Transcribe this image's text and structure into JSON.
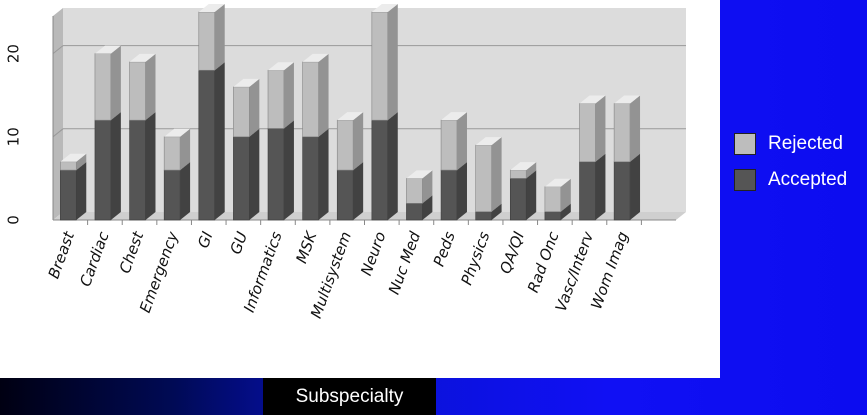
{
  "chart_data": {
    "type": "bar",
    "stacked": true,
    "style": "3d",
    "categories": [
      "Breast",
      "Cardiac",
      "Chest",
      "Emergency",
      "GI",
      "GU",
      "Informatics",
      "MSK",
      "Multisystem",
      "Neuro",
      "Nuc Med",
      "Peds",
      "Physics",
      "QA/QI",
      "Rad Onc",
      "Vasc/Interv",
      "Wom Imag"
    ],
    "series": [
      {
        "name": "Accepted",
        "color": "#555555",
        "values": [
          6,
          12,
          12,
          6,
          18,
          10,
          11,
          10,
          6,
          12,
          2,
          6,
          1,
          5,
          1,
          7,
          7
        ]
      },
      {
        "name": "Rejected",
        "color": "#bdbdbd",
        "values": [
          1,
          8,
          7,
          4,
          7,
          6,
          7,
          9,
          6,
          13,
          3,
          6,
          8,
          1,
          3,
          7,
          7
        ]
      }
    ],
    "xlabel": "Subspecialty",
    "ylabel": "",
    "yticks": [
      0,
      10,
      20
    ],
    "ylim": [
      0,
      25
    ],
    "grid": true,
    "legend_position": "right"
  }
}
